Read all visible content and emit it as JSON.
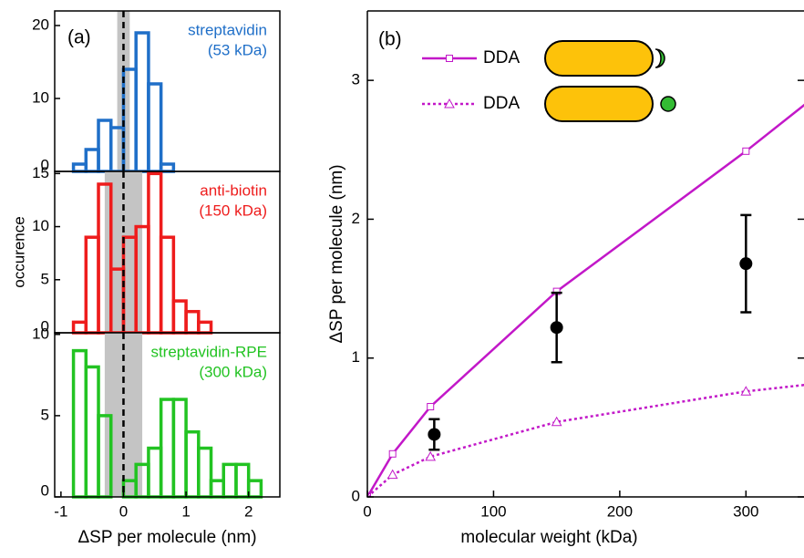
{
  "chart_data": [
    {
      "type": "histogram",
      "panel_label": "(a)",
      "annotation": [
        "streptavidin",
        "(53 kDa)"
      ],
      "color": "#1f6fc8",
      "bins": [
        -0.8,
        -0.6,
        -0.4,
        -0.2,
        0,
        0.2,
        0.4,
        0.6,
        0.8
      ],
      "counts": [
        1,
        3,
        7,
        6,
        14,
        19,
        12,
        1
      ],
      "xlim": [
        -1.1,
        2.5
      ],
      "ylim": [
        0,
        22
      ],
      "yticks": [
        0,
        10,
        20
      ],
      "shaded_region": [
        -0.1,
        0.1
      ],
      "zero_line": 0
    },
    {
      "type": "histogram",
      "annotation": [
        "anti-biotin",
        "(150 kDa)"
      ],
      "color": "#ee1c1c",
      "ylabel": "occurence",
      "bins": [
        -0.8,
        -0.6,
        -0.4,
        -0.2,
        0,
        0.2,
        0.4,
        0.6,
        0.8,
        1.0,
        1.2,
        1.4
      ],
      "counts": [
        1,
        9,
        14,
        6,
        9,
        10,
        15,
        9,
        3,
        2,
        1
      ],
      "xlim": [
        -1.1,
        2.5
      ],
      "ylim": [
        0,
        15.2
      ],
      "yticks": [
        0,
        5,
        10,
        15
      ],
      "shaded_region": [
        -0.3,
        0.3
      ],
      "zero_line": 0
    },
    {
      "type": "histogram",
      "annotation": [
        "streptavidin-RPE",
        "(300 kDa)"
      ],
      "color": "#22c322",
      "xlabel": "ΔSP per molecule (nm)",
      "bins": [
        -0.8,
        -0.6,
        -0.4,
        -0.2,
        0,
        0.2,
        0.4,
        0.6,
        0.8,
        1.0,
        1.2,
        1.4,
        1.6,
        1.8,
        2.0,
        2.2
      ],
      "counts": [
        9,
        8,
        5,
        0,
        1,
        2,
        3,
        6,
        6,
        4,
        3,
        1,
        2,
        2,
        1
      ],
      "xlim": [
        -1.1,
        2.5
      ],
      "xticks": [
        -1,
        0,
        1,
        2
      ],
      "ylim": [
        0,
        10.1
      ],
      "yticks": [
        0,
        5,
        10
      ],
      "shaded_region": [
        -0.3,
        0.3
      ],
      "zero_line": 0
    },
    {
      "type": "line",
      "panel_label": "(b)",
      "xlabel": "molecular weight (kDa)",
      "ylabel": "ΔSP per molecule (nm)",
      "xlim": [
        0,
        346
      ],
      "xticks": [
        0,
        100,
        200,
        300
      ],
      "ylim": [
        0,
        3.5
      ],
      "yticks": [
        0,
        1,
        2,
        3
      ],
      "series": [
        {
          "name": "DDA",
          "color": "#c218c8",
          "marker": "square",
          "dash": false,
          "x": [
            0,
            20,
            50,
            150,
            300,
            350
          ],
          "values": [
            0,
            0.31,
            0.65,
            1.48,
            2.49,
            2.85
          ]
        },
        {
          "name": "DDA",
          "color": "#c218c8",
          "marker": "triangle",
          "dash": true,
          "x": [
            0,
            20,
            50,
            150,
            300,
            350
          ],
          "values": [
            0,
            0.16,
            0.29,
            0.54,
            0.76,
            0.81
          ]
        },
        {
          "color": "#000000",
          "marker": "circle",
          "errorbars": true,
          "x": [
            53,
            150,
            300
          ],
          "values": [
            0.45,
            1.22,
            1.68
          ],
          "errors": [
            0.11,
            0.25,
            0.35
          ]
        }
      ]
    }
  ]
}
